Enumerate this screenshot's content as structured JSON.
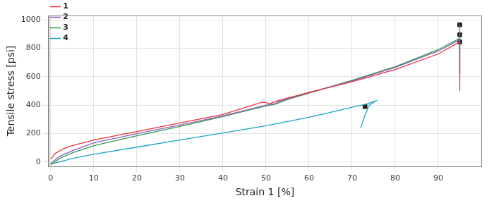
{
  "chart_data": {
    "type": "line",
    "x_label": "Strain 1 [%]",
    "y_label": "Tensile stress [psi]",
    "xlim": [
      -0.5,
      100
    ],
    "xticks": [
      0,
      10,
      20,
      30,
      40,
      50,
      60,
      70,
      80,
      90
    ],
    "ylim": [
      -30,
      1030
    ],
    "yticks": [
      0,
      200,
      400,
      600,
      800,
      1000
    ],
    "grid": true,
    "legend": "upper left",
    "series": [
      {
        "name": "1",
        "color": "#e8323c",
        "x": [
          0,
          1,
          3,
          5,
          10,
          20,
          30,
          40,
          49,
          50,
          51,
          52,
          55,
          60,
          70,
          80,
          90,
          95,
          95
        ],
        "values": [
          20,
          60,
          95,
          115,
          155,
          215,
          275,
          335,
          420,
          418,
          410,
          425,
          450,
          490,
          565,
          650,
          760,
          845,
          500
        ],
        "break_point": {
          "x": 95,
          "y": 845
        }
      },
      {
        "name": "2",
        "color": "#8e5fb8",
        "x": [
          0,
          2,
          5,
          10,
          20,
          30,
          40,
          50,
          52,
          53,
          55,
          60,
          70,
          80,
          90,
          95,
          95,
          95
        ],
        "values": [
          -10,
          40,
          80,
          135,
          200,
          260,
          325,
          400,
          410,
          425,
          445,
          490,
          570,
          665,
          780,
          860,
          965,
          620
        ],
        "break_point": {
          "x": 95,
          "y": 965
        }
      },
      {
        "name": "3",
        "color": "#2e9a4e",
        "x": [
          0,
          2,
          5,
          10,
          20,
          30,
          40,
          50,
          52,
          55,
          60,
          70,
          80,
          90,
          95,
          95,
          95
        ],
        "values": [
          -20,
          25,
          65,
          115,
          185,
          250,
          320,
          395,
          405,
          440,
          485,
          575,
          670,
          790,
          870,
          895,
          620
        ],
        "break_point": {
          "x": 95,
          "y": 895
        }
      },
      {
        "name": "4",
        "color": "#1aa3c8",
        "x": [
          0,
          5,
          10,
          20,
          30,
          40,
          50,
          60,
          65,
          70,
          73,
          75,
          75.5,
          74,
          73,
          72
        ],
        "values": [
          -15,
          25,
          55,
          105,
          155,
          205,
          255,
          315,
          350,
          385,
          405,
          425,
          430,
          400,
          330,
          240
        ],
        "break_point": {
          "x": 73,
          "y": 390
        }
      }
    ]
  }
}
